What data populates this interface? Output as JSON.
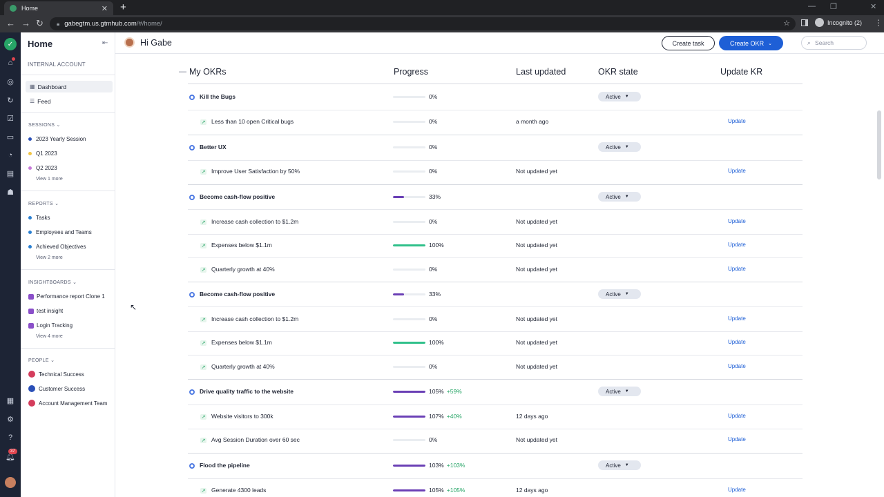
{
  "browser": {
    "tab_title": "Home",
    "url_host": "gabegtm.us.gtmhub.com",
    "url_path": "/#/home/",
    "incognito_label": "Incognito (2)"
  },
  "rail": {
    "notification_count": "37",
    "icons": [
      "logo-icon",
      "home-icon",
      "target-icon",
      "insights-icon",
      "tasks-icon",
      "whiteboard-icon",
      "sessions-icon",
      "reports-icon",
      "people-icon",
      "apps-icon",
      "settings-icon",
      "help-icon",
      "bell-icon"
    ]
  },
  "sidebar": {
    "title": "Home",
    "account_label": "INTERNAL ACCOUNT",
    "nav": [
      {
        "label": "Dashboard",
        "active": true
      },
      {
        "label": "Feed",
        "active": false
      }
    ],
    "sessions": {
      "label": "SESSIONS",
      "items": [
        {
          "label": "2023 Yearly Session",
          "color": "#2a4fb7"
        },
        {
          "label": "Q1 2023",
          "color": "#f2c544"
        },
        {
          "label": "Q2 2023",
          "color": "#c77bd8"
        }
      ],
      "more": "View 1 more"
    },
    "reports": {
      "label": "REPORTS",
      "items": [
        {
          "label": "Tasks",
          "color": "#2a7fd1"
        },
        {
          "label": "Employees and Teams",
          "color": "#2a7fd1"
        },
        {
          "label": "Achieved Objectives",
          "color": "#2a7fd1"
        }
      ],
      "more": "View 2 more"
    },
    "insightboards": {
      "label": "INSIGHTBOARDS",
      "items": [
        {
          "label": "Performance report Clone 1"
        },
        {
          "label": "test insight"
        },
        {
          "label": "Login Tracking"
        }
      ],
      "more": "View 4 more"
    },
    "people": {
      "label": "PEOPLE",
      "items": [
        {
          "label": "Technical Success",
          "color": "#d43d5c"
        },
        {
          "label": "Customer Success",
          "color": "#2a4fb7"
        },
        {
          "label": "Account Management Team",
          "color": "#d43d5c"
        }
      ]
    }
  },
  "header": {
    "greeting": "Hi Gabe",
    "create_task": "Create task",
    "create_okr": "Create OKR",
    "search_placeholder": "Search"
  },
  "table": {
    "collapse_symbol": "—",
    "headers": {
      "name": "My OKRs",
      "progress": "Progress",
      "last_updated": "Last updated",
      "okr_state": "OKR state",
      "update_kr": "Update KR"
    },
    "rows": [
      {
        "type": "objective",
        "name": "Kill the Bugs",
        "progress": 0,
        "progress_label": "0%",
        "delta": "",
        "last_updated": "",
        "state": "Active"
      },
      {
        "type": "kr",
        "name": "Less than 10 open Critical bugs",
        "progress": 0,
        "progress_label": "0%",
        "delta": "",
        "last_updated": "a month ago",
        "update": "Update"
      },
      {
        "type": "objective",
        "name": "Better UX",
        "progress": 0,
        "progress_label": "0%",
        "delta": "",
        "last_updated": "",
        "state": "Active"
      },
      {
        "type": "kr",
        "name": "Improve User Satisfaction by 50%",
        "progress": 0,
        "progress_label": "0%",
        "delta": "",
        "last_updated": "Not updated yet",
        "update": "Update"
      },
      {
        "type": "objective",
        "name": "Become cash-flow positive",
        "progress": 33,
        "progress_label": "33%",
        "delta": "",
        "last_updated": "",
        "state": "Active"
      },
      {
        "type": "kr",
        "name": "Increase cash collection to $1.2m",
        "progress": 0,
        "progress_label": "0%",
        "delta": "",
        "last_updated": "Not updated yet",
        "update": "Update"
      },
      {
        "type": "kr",
        "name": "Expenses below $1.1m",
        "progress": 100,
        "progress_label": "100%",
        "delta": "",
        "last_updated": "Not updated yet",
        "update": "Update"
      },
      {
        "type": "kr",
        "name": "Quarterly growth at 40%",
        "progress": 0,
        "progress_label": "0%",
        "delta": "",
        "last_updated": "Not updated yet",
        "update": "Update"
      },
      {
        "type": "objective",
        "name": "Become cash-flow positive",
        "progress": 33,
        "progress_label": "33%",
        "delta": "",
        "last_updated": "",
        "state": "Active"
      },
      {
        "type": "kr",
        "name": "Increase cash collection to $1.2m",
        "progress": 0,
        "progress_label": "0%",
        "delta": "",
        "last_updated": "Not updated yet",
        "update": "Update"
      },
      {
        "type": "kr",
        "name": "Expenses below $1.1m",
        "progress": 100,
        "progress_label": "100%",
        "delta": "",
        "last_updated": "Not updated yet",
        "update": "Update"
      },
      {
        "type": "kr",
        "name": "Quarterly growth at 40%",
        "progress": 0,
        "progress_label": "0%",
        "delta": "",
        "last_updated": "Not updated yet",
        "update": "Update"
      },
      {
        "type": "objective",
        "name": "Drive quality traffic to the website",
        "progress": 105,
        "progress_label": "105%",
        "delta": "+59%",
        "last_updated": "",
        "state": "Active"
      },
      {
        "type": "kr",
        "name": "Website visitors to 300k",
        "progress": 107,
        "progress_label": "107%",
        "delta": "+40%",
        "last_updated": "12 days ago",
        "update": "Update"
      },
      {
        "type": "kr",
        "name": "Avg Session Duration over 60 sec",
        "progress": 0,
        "progress_label": "0%",
        "delta": "",
        "last_updated": "Not updated yet",
        "update": "Update"
      },
      {
        "type": "objective",
        "name": "Flood the pipeline",
        "progress": 103,
        "progress_label": "103%",
        "delta": "+103%",
        "last_updated": "",
        "state": "Active"
      },
      {
        "type": "kr",
        "name": "Generate 4300 leads",
        "progress": 105,
        "progress_label": "105%",
        "delta": "+105%",
        "last_updated": "12 days ago",
        "update": "Update"
      }
    ]
  },
  "colors": {
    "accent": "#1e5fd6",
    "progress_purple": "#6a3fb5",
    "progress_green": "#2fc08a",
    "positive_delta": "#27a567"
  }
}
